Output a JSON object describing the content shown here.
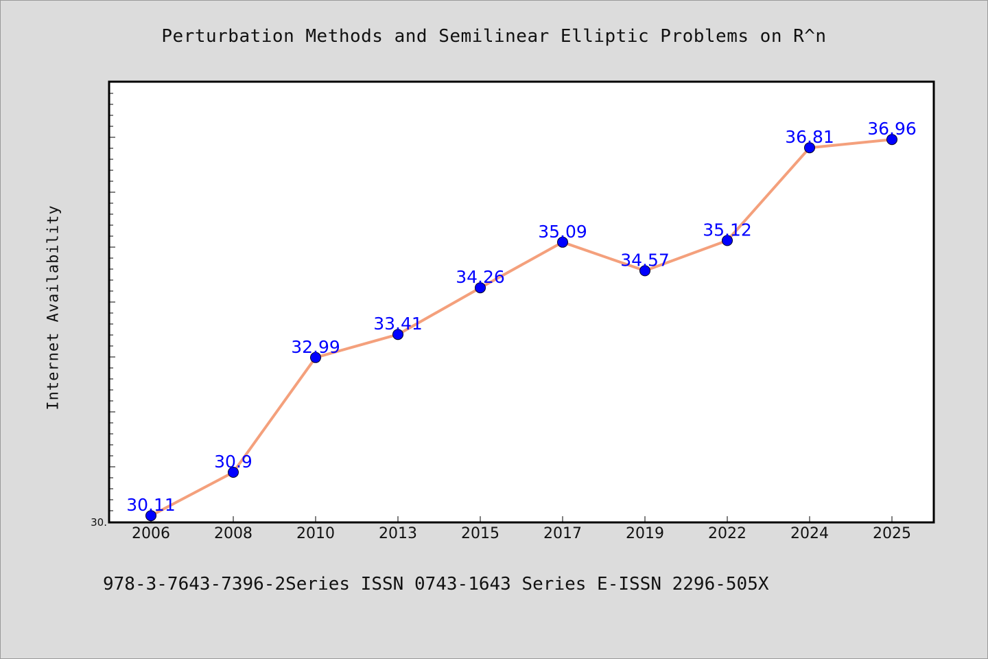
{
  "title": "Perturbation Methods and Semilinear Elliptic Problems on R^n",
  "footer": "978-3-7643-7396-2Series ISSN 0743-1643 Series E-ISSN 2296-505X",
  "colors": {
    "background": "#dcdcdc",
    "plot_background": "#ffffff",
    "line": "#f4a07c",
    "marker": "#0000ff",
    "data_label": "#0000ff"
  },
  "chart_data": {
    "type": "line",
    "title": "Perturbation Methods and Semilinear Elliptic Problems on R^n",
    "xlabel": "",
    "ylabel": "Internet Availability",
    "categories": [
      "2006",
      "2008",
      "2010",
      "2013",
      "2015",
      "2017",
      "2019",
      "2022",
      "2024",
      "2025"
    ],
    "series": [
      {
        "values": [
          30.11,
          30.9,
          32.99,
          33.41,
          34.26,
          35.09,
          34.57,
          35.12,
          36.81,
          36.96
        ]
      }
    ],
    "data_labels": [
      "30.11",
      "30.9",
      "32.99",
      "33.41",
      "34.26",
      "35.09",
      "34.57",
      "35.12",
      "36.81",
      "36.96"
    ],
    "ylim": [
      30.0,
      38.0
    ],
    "y_tick_labels": [
      "30."
    ],
    "grid": false,
    "legend": "none"
  }
}
